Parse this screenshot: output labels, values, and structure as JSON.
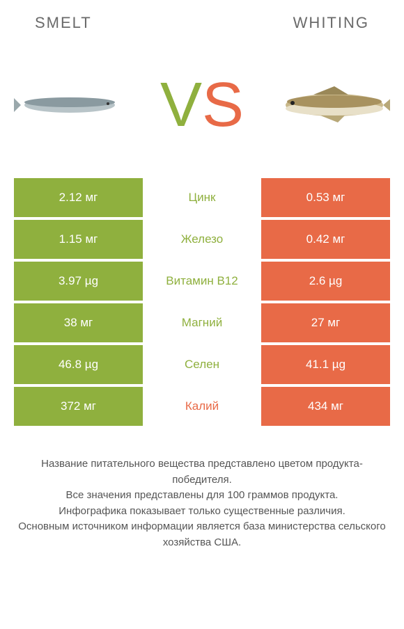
{
  "header": {
    "left_name": "SMELT",
    "right_name": "WHITING"
  },
  "vs": {
    "v": "V",
    "s": "S"
  },
  "colors": {
    "green": "#8fb03e",
    "orange": "#e86a47",
    "text": "#555555",
    "bg": "#ffffff"
  },
  "rows": [
    {
      "left": "2.12 мг",
      "mid": "Цинк",
      "right": "0.53 мг",
      "winner": "left"
    },
    {
      "left": "1.15 мг",
      "mid": "Железо",
      "right": "0.42 мг",
      "winner": "left"
    },
    {
      "left": "3.97 µg",
      "mid": "Витамин B12",
      "right": "2.6 µg",
      "winner": "left"
    },
    {
      "left": "38 мг",
      "mid": "Магний",
      "right": "27 мг",
      "winner": "left"
    },
    {
      "left": "46.8 µg",
      "mid": "Селен",
      "right": "41.1 µg",
      "winner": "left"
    },
    {
      "left": "372 мг",
      "mid": "Калий",
      "right": "434 мг",
      "winner": "right"
    }
  ],
  "footer": {
    "line1": "Название питательного вещества представлено цветом продукта-победителя.",
    "line2": "Все значения представлены для 100 граммов продукта.",
    "line3": "Инфографика показывает только существенные различия.",
    "line4": "Основным источником информации является база министерства сельского хозяйства США."
  }
}
